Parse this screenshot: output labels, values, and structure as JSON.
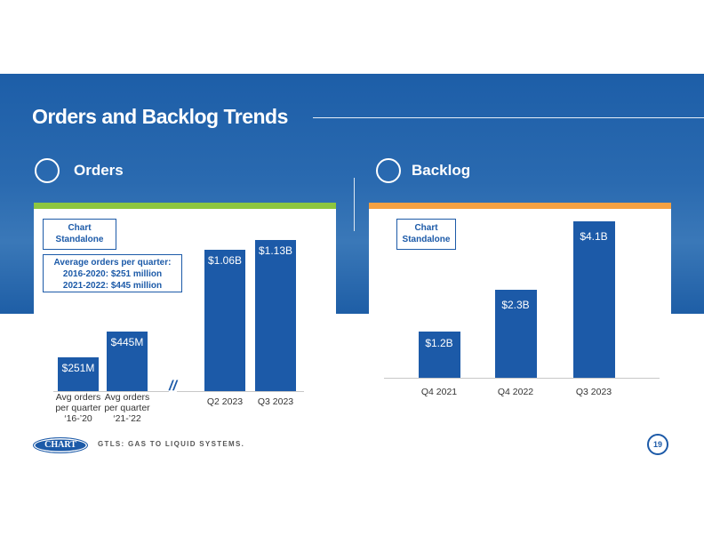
{
  "slide": {
    "title": "Orders and Backlog Trends",
    "logo": "CHART",
    "footer": "GTLS: GAS TO LIQUID SYSTEMS.",
    "page": 19
  },
  "chart_data": [
    {
      "type": "bar",
      "title": "Orders",
      "note": "Chart\nStandalone",
      "annotation": "Average orders per quarter:\n2016-2020: $251 million\n2021-2022: $445 million",
      "categories": [
        "Avg orders\nper quarter\n‘16-’20",
        "Avg orders\nper quarter\n‘21-’22",
        "Q2 2023",
        "Q3 2023"
      ],
      "values": [
        251,
        445,
        1060,
        1130
      ],
      "value_labels": [
        "$251M",
        "$445M",
        "$1.06B",
        "$1.13B"
      ],
      "color": "#1c5aa8",
      "accent": "#8dc63f"
    },
    {
      "type": "bar",
      "title": "Backlog",
      "note": "Chart\nStandalone",
      "categories": [
        "Q4 2021",
        "Q4 2022",
        "Q3 2023"
      ],
      "values": [
        1.2,
        2.3,
        4.1
      ],
      "value_labels": [
        "$1.2B",
        "$2.3B",
        "$4.1B"
      ],
      "color": "#1c5aa8",
      "accent": "#f5a142"
    }
  ]
}
